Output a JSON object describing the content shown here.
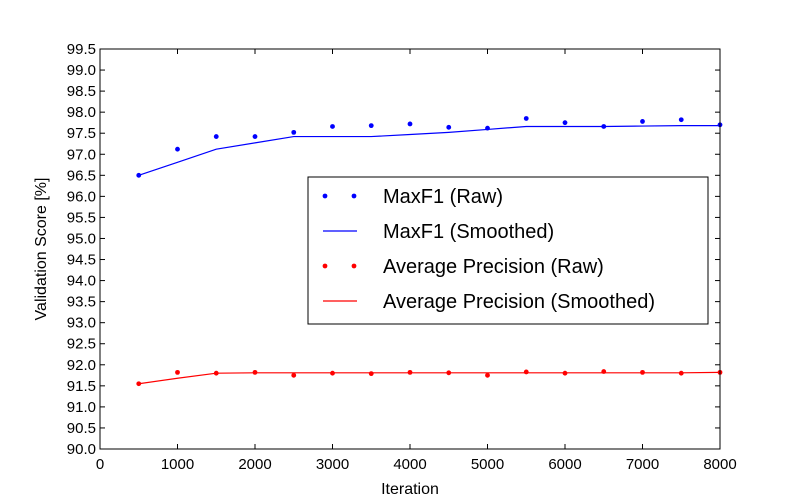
{
  "chart_data": {
    "type": "line",
    "xlabel": "Iteration",
    "ylabel": "Validation Score [%]",
    "xlim": [
      0,
      8000
    ],
    "ylim": [
      90.0,
      99.5
    ],
    "x_ticks": [
      "0",
      "1000",
      "2000",
      "3000",
      "4000",
      "5000",
      "6000",
      "7000",
      "8000"
    ],
    "y_ticks": [
      "90.0",
      "90.5",
      "91.0",
      "91.5",
      "92.0",
      "92.5",
      "93.0",
      "93.5",
      "94.0",
      "94.5",
      "95.0",
      "95.5",
      "96.0",
      "96.5",
      "97.0",
      "97.5",
      "98.0",
      "98.5",
      "99.0",
      "99.5"
    ],
    "grid": false,
    "legend_position": "center-right",
    "x": [
      500,
      1000,
      1500,
      2000,
      2500,
      3000,
      3500,
      4000,
      4500,
      5000,
      5500,
      6000,
      6500,
      7000,
      7500,
      8000
    ],
    "series": [
      {
        "name": "MaxF1 (Raw)",
        "style": "points",
        "color": "#0000ff",
        "values": [
          96.5,
          97.12,
          97.42,
          97.42,
          97.52,
          97.66,
          97.68,
          97.72,
          97.64,
          97.62,
          97.85,
          97.75,
          97.66,
          97.78,
          97.82,
          97.7
        ]
      },
      {
        "name": "MaxF1 (Smoothed)",
        "style": "line",
        "color": "#0000ff",
        "values": [
          96.5,
          96.81,
          97.12,
          97.27,
          97.42,
          97.42,
          97.42,
          97.47,
          97.52,
          97.59,
          97.66,
          97.66,
          97.66,
          97.67,
          97.68,
          97.68
        ]
      },
      {
        "name": "Average Precision (Raw)",
        "style": "points",
        "color": "#ff0000",
        "values": [
          91.55,
          91.82,
          91.8,
          91.82,
          91.75,
          91.8,
          91.79,
          91.82,
          91.81,
          91.75,
          91.83,
          91.8,
          91.84,
          91.82,
          91.8,
          91.82
        ]
      },
      {
        "name": "Average Precision (Smoothed)",
        "style": "line",
        "color": "#ff0000",
        "values": [
          91.55,
          91.68,
          91.8,
          91.81,
          91.81,
          91.81,
          91.81,
          91.81,
          91.81,
          91.81,
          91.81,
          91.81,
          91.81,
          91.81,
          91.81,
          91.82
        ]
      }
    ]
  }
}
